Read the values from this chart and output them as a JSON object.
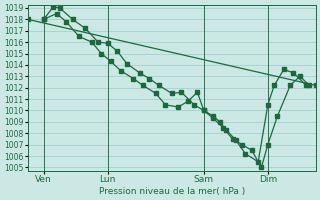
{
  "title": "",
  "xlabel": "Pression niveau de la mer( hPa )",
  "ylabel": "",
  "bg_color": "#cce8e4",
  "grid_color": "#99cccc",
  "line_color": "#1a6b3c",
  "ylim": [
    1005,
    1019
  ],
  "yticks": [
    1005,
    1006,
    1007,
    1008,
    1009,
    1010,
    1011,
    1012,
    1013,
    1014,
    1015,
    1016,
    1017,
    1018,
    1019
  ],
  "xlim": [
    0,
    90
  ],
  "xtick_positions": [
    5,
    25,
    55,
    75
  ],
  "xtick_labels": [
    "Ven",
    "Lun",
    "Sam",
    "Dim"
  ],
  "vlines": [
    5,
    25,
    55,
    75
  ],
  "smooth_line": [
    [
      0,
      1018.0
    ],
    [
      90,
      1012.2
    ]
  ],
  "series1_x": [
    5,
    8,
    10,
    14,
    18,
    22,
    25,
    28,
    31,
    35,
    38,
    41,
    45,
    48,
    52,
    55,
    58,
    60,
    62,
    65,
    68,
    72,
    75,
    77,
    80,
    83,
    87
  ],
  "series1_y": [
    1018.0,
    1019.1,
    1019.0,
    1018.0,
    1017.2,
    1016.0,
    1015.9,
    1015.2,
    1014.1,
    1013.3,
    1012.8,
    1012.2,
    1011.5,
    1011.6,
    1010.5,
    1010.0,
    1009.5,
    1009.0,
    1008.3,
    1007.4,
    1006.2,
    1005.5,
    1010.5,
    1012.2,
    1013.6,
    1013.3,
    1012.2
  ],
  "series2_x": [
    5,
    9,
    12,
    16,
    20,
    23,
    26,
    29,
    33,
    36,
    40,
    43,
    47,
    50,
    53,
    55,
    58,
    61,
    64,
    67,
    70,
    73,
    75,
    78,
    82,
    85,
    88
  ],
  "series2_y": [
    1018.0,
    1018.5,
    1017.8,
    1016.5,
    1016.0,
    1015.0,
    1014.3,
    1013.5,
    1012.8,
    1012.2,
    1011.5,
    1010.5,
    1010.3,
    1010.8,
    1011.6,
    1010.0,
    1009.3,
    1008.5,
    1007.5,
    1007.0,
    1006.5,
    1005.0,
    1007.0,
    1009.5,
    1012.2,
    1013.0,
    1012.2
  ]
}
